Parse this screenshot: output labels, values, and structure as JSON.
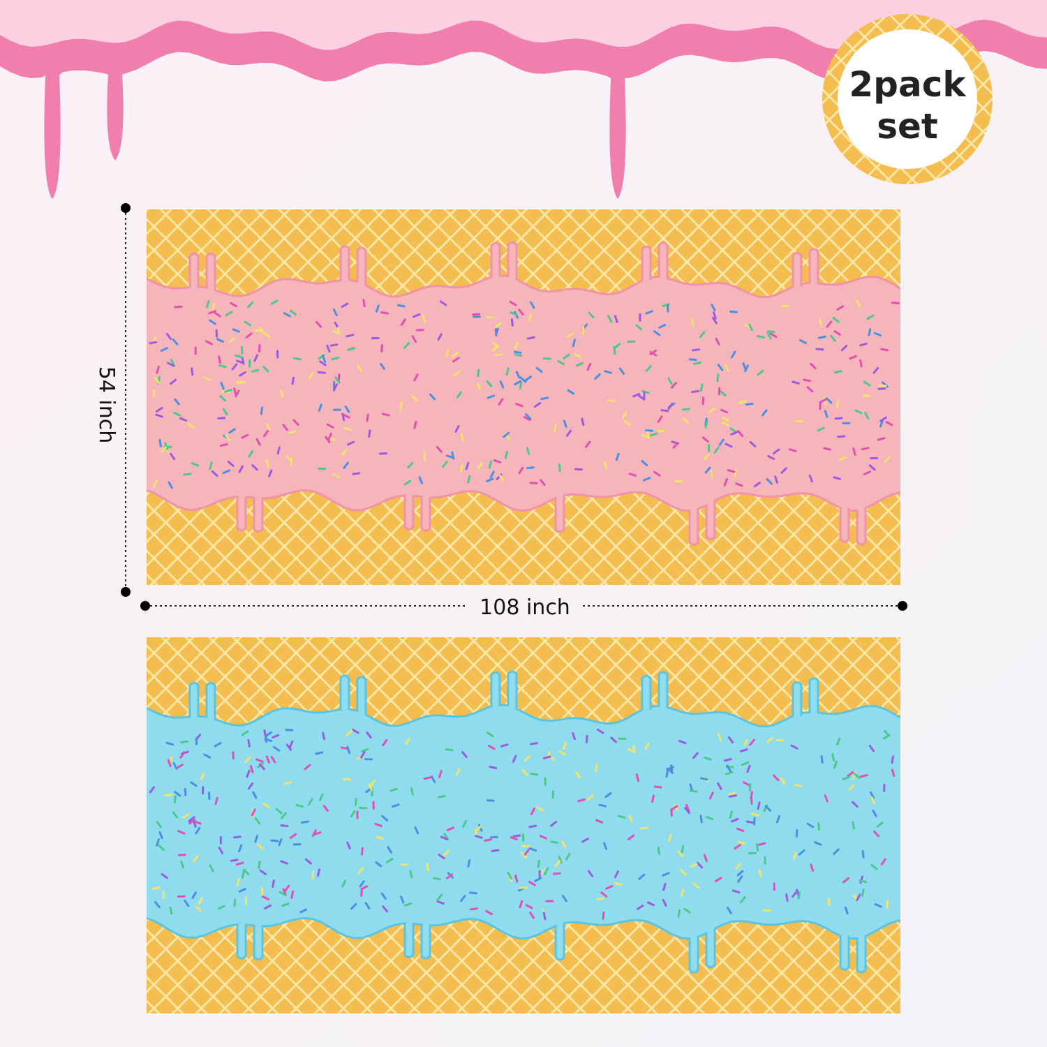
{
  "badge": {
    "lines": [
      "2pack",
      "set"
    ]
  },
  "dimensions": {
    "height": "54 inch",
    "width": "108 inch"
  }
}
